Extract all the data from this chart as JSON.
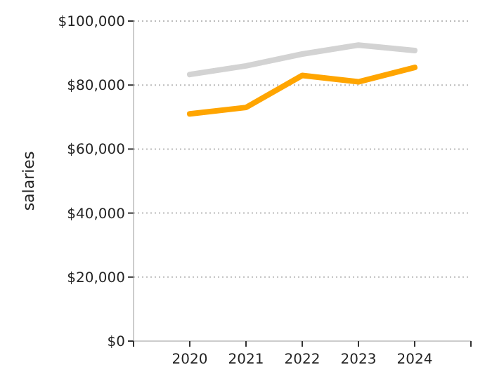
{
  "chart_data": {
    "type": "line",
    "ylabel": "salaries",
    "x": [
      2020,
      2021,
      2022,
      2023,
      2024
    ],
    "series": [
      {
        "color": "#d3d3d3",
        "values": [
          83300,
          86000,
          89700,
          92500,
          90800
        ]
      },
      {
        "color": "#ffa500",
        "values": [
          71000,
          73000,
          83000,
          81000,
          85500
        ]
      }
    ],
    "xlim": [
      2019,
      2025
    ],
    "xticks": [
      {
        "value": 2019,
        "label": null
      },
      2020,
      2021,
      2022,
      2023,
      2024,
      {
        "value": 2025,
        "label": null
      }
    ],
    "ylim": [
      0,
      100000
    ],
    "yticks": [
      {
        "value": 0,
        "label": "$0"
      },
      {
        "value": 20000,
        "label": "$20,000"
      },
      {
        "value": 40000,
        "label": "$40,000"
      },
      {
        "value": 60000,
        "label": "$60,000"
      },
      {
        "value": 80000,
        "label": "$80,000"
      },
      {
        "value": 100000,
        "label": "$100,000"
      }
    ],
    "grid": "y",
    "marker": "none",
    "line_style": "solid"
  }
}
